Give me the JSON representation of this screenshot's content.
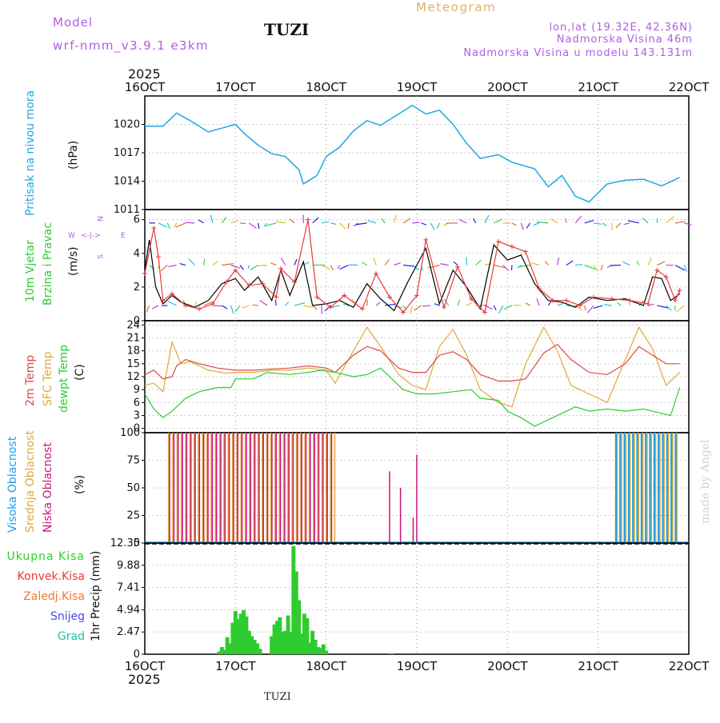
{
  "header": {
    "model_label": "Model",
    "model_name": "wrf-nmm_v3.9.1 e3km",
    "station": "TUZI",
    "meteogram": "Meteogram",
    "lonlat": "lon,lat (19.32E, 42.36N)",
    "elevation": "Nadmorska Visina 46m",
    "model_elevation": "Nadmorska Visina u modelu 143.131m",
    "footer_station": "TUZI",
    "credit": "made by Angel"
  },
  "time_axis": {
    "year": "2025",
    "ticks": [
      "16OCT",
      "17OCT",
      "18OCT",
      "19OCT",
      "20OCT",
      "21OCT",
      "22OCT"
    ]
  },
  "colors": {
    "pressure": "#1ba8e0",
    "wind_black": "#000000",
    "wind_gust": "#e83a3a",
    "t2m": "#e04848",
    "sfc": "#e0a838",
    "dewpt": "#2ecc2e",
    "high_cloud": "#1ba0e8",
    "mid_cloud": "#e0a838",
    "low_cloud": "#c8147a",
    "precip_total": "#2ecc2e",
    "precip_conv": "#e83a3a"
  },
  "chart_data": [
    {
      "type": "line",
      "title": "Pritisak na nivou mora",
      "ylabel": "(hPa)",
      "ylim": [
        1011,
        1023
      ],
      "yticks": [
        "1020",
        "1017",
        "1014",
        "1011"
      ],
      "x_days": [
        0,
        0.2,
        0.35,
        0.5,
        0.7,
        0.85,
        1.0,
        1.1,
        1.25,
        1.4,
        1.55,
        1.7,
        1.75,
        1.9,
        2.0,
        2.15,
        2.3,
        2.45,
        2.6,
        2.75,
        2.95,
        3.1,
        3.25,
        3.4,
        3.55,
        3.7,
        3.9,
        4.05,
        4.3,
        4.45,
        4.6,
        4.75,
        4.9,
        5.1,
        5.3,
        5.5,
        5.7,
        5.9
      ],
      "values": [
        1019.8,
        1019.8,
        1021.2,
        1020.4,
        1019.2,
        1019.6,
        1020.0,
        1019.0,
        1017.8,
        1016.9,
        1016.6,
        1015.2,
        1013.7,
        1014.6,
        1016.6,
        1017.6,
        1019.3,
        1020.4,
        1019.9,
        1020.8,
        1022.0,
        1021.1,
        1021.5,
        1020.0,
        1018.0,
        1016.4,
        1016.8,
        1016.0,
        1015.3,
        1013.4,
        1014.6,
        1012.4,
        1011.8,
        1013.7,
        1014.1,
        1014.2,
        1013.5,
        1014.4
      ],
      "series_name": "Pritisak na nivou mora"
    },
    {
      "type": "line",
      "title": "10m Vjetar Brzina i Pravac",
      "ylabel": "(m/s)",
      "ylim": [
        0,
        6.6
      ],
      "yticks": [
        "6",
        "4",
        "2",
        "0"
      ],
      "direction_legend": {
        "n": "N",
        "s": "S",
        "w": "W",
        "e": "E"
      },
      "series": [
        {
          "name": "wind speed",
          "x_days": [
            0,
            0.05,
            0.12,
            0.2,
            0.3,
            0.4,
            0.55,
            0.7,
            0.85,
            1.0,
            1.1,
            1.25,
            1.4,
            1.5,
            1.6,
            1.75,
            1.85,
            2.0,
            2.15,
            2.3,
            2.45,
            2.6,
            2.75,
            2.9,
            3.1,
            3.25,
            3.4,
            3.55,
            3.7,
            3.85,
            4.0,
            4.15,
            4.3,
            4.45,
            4.6,
            4.75,
            4.9,
            5.1,
            5.3,
            5.5,
            5.6,
            5.7,
            5.8,
            5.9
          ],
          "values": [
            3.0,
            4.8,
            2.0,
            1.0,
            1.5,
            1.1,
            0.8,
            1.2,
            2.2,
            2.5,
            1.8,
            2.6,
            1.2,
            3.0,
            1.5,
            3.5,
            0.9,
            1.0,
            1.2,
            0.8,
            2.2,
            1.3,
            0.6,
            2.3,
            4.3,
            1.0,
            3.0,
            2.0,
            0.7,
            4.5,
            3.6,
            3.9,
            2.2,
            1.2,
            1.1,
            0.8,
            1.4,
            1.2,
            1.3,
            0.9,
            2.6,
            2.5,
            1.2,
            1.6
          ]
        },
        {
          "name": "gust",
          "x_days": [
            0,
            0.1,
            0.15,
            0.2,
            0.3,
            0.45,
            0.6,
            0.75,
            0.9,
            1.0,
            1.15,
            1.3,
            1.45,
            1.5,
            1.65,
            1.8,
            1.9,
            2.05,
            2.2,
            2.4,
            2.55,
            2.7,
            2.85,
            3.0,
            3.1,
            3.3,
            3.45,
            3.6,
            3.75,
            3.9,
            4.05,
            4.2,
            4.35,
            4.5,
            4.65,
            4.8,
            4.95,
            5.15,
            5.35,
            5.55,
            5.65,
            5.75,
            5.85,
            5.9
          ],
          "values": [
            2.8,
            5.5,
            3.8,
            1.2,
            1.6,
            0.9,
            0.7,
            1.0,
            2.3,
            3.0,
            2.1,
            2.2,
            1.4,
            3.1,
            2.3,
            6.0,
            1.4,
            0.8,
            1.5,
            0.7,
            2.8,
            1.4,
            0.5,
            1.5,
            4.8,
            0.8,
            3.2,
            1.3,
            0.5,
            4.7,
            4.4,
            4.1,
            1.9,
            1.2,
            1.2,
            0.9,
            1.4,
            1.3,
            1.2,
            1.0,
            3.0,
            2.6,
            1.2,
            1.8
          ]
        }
      ],
      "barb_levels": [
        5.8,
        3.3,
        0.9
      ]
    },
    {
      "type": "line",
      "title": "2m Temp",
      "titles": [
        "2m Temp",
        "SFC Temp",
        "dewpt Temp"
      ],
      "ylabel": "(C)",
      "ylim": [
        -1,
        25
      ],
      "yticks": [
        "24",
        "21",
        "18",
        "15",
        "12",
        "9",
        "6",
        "3",
        "0"
      ],
      "series": [
        {
          "name": "2m Temp",
          "x_days": [
            0,
            0.1,
            0.2,
            0.3,
            0.35,
            0.45,
            0.6,
            0.8,
            1.0,
            1.2,
            1.4,
            1.6,
            1.8,
            2.0,
            2.1,
            2.3,
            2.45,
            2.6,
            2.8,
            2.95,
            3.1,
            3.25,
            3.4,
            3.55,
            3.7,
            3.9,
            4.05,
            4.2,
            4.4,
            4.55,
            4.7,
            4.9,
            5.1,
            5.3,
            5.45,
            5.6,
            5.75,
            5.9
          ],
          "values": [
            12.5,
            13.5,
            11.5,
            12.0,
            14.5,
            16.0,
            15.0,
            14.0,
            13.5,
            13.5,
            13.8,
            14.0,
            14.5,
            14.0,
            13.0,
            17.0,
            19.0,
            18.0,
            14.0,
            13.0,
            13.0,
            17.0,
            17.8,
            16.0,
            12.5,
            11.0,
            11.0,
            11.5,
            17.5,
            19.5,
            16.0,
            13.0,
            12.5,
            15.0,
            19.0,
            17.0,
            15.0,
            15.0
          ]
        },
        {
          "name": "SFC Temp",
          "x_days": [
            0,
            0.1,
            0.2,
            0.3,
            0.4,
            0.5,
            0.7,
            0.9,
            1.0,
            1.2,
            1.4,
            1.6,
            1.8,
            2.0,
            2.1,
            2.3,
            2.45,
            2.6,
            2.8,
            2.95,
            3.1,
            3.25,
            3.4,
            3.55,
            3.7,
            3.9,
            4.05,
            4.2,
            4.4,
            4.55,
            4.7,
            4.9,
            5.1,
            5.3,
            5.45,
            5.6,
            5.75,
            5.9
          ],
          "values": [
            10.0,
            10.5,
            8.5,
            20.0,
            15.0,
            15.5,
            13.5,
            12.8,
            13.0,
            13.0,
            13.5,
            13.5,
            14.0,
            13.5,
            10.5,
            18.0,
            23.5,
            19.0,
            12.5,
            10.0,
            9.0,
            19.0,
            23.0,
            17.0,
            9.0,
            6.0,
            5.0,
            15.0,
            23.5,
            18.0,
            10.0,
            8.0,
            6.0,
            16.0,
            23.5,
            18.5,
            10.0,
            13.0
          ]
        },
        {
          "name": "dewpt Temp",
          "x_days": [
            0,
            0.1,
            0.2,
            0.3,
            0.45,
            0.6,
            0.8,
            0.95,
            1.0,
            1.2,
            1.35,
            1.6,
            1.8,
            1.95,
            2.1,
            2.3,
            2.45,
            2.6,
            2.75,
            2.85,
            3.0,
            3.2,
            3.4,
            3.6,
            3.7,
            3.9,
            4.0,
            4.15,
            4.3,
            4.45,
            4.6,
            4.75,
            4.9,
            5.1,
            5.3,
            5.5,
            5.7,
            5.8,
            5.9
          ],
          "values": [
            8.0,
            4.5,
            2.5,
            4.0,
            7.0,
            8.5,
            9.5,
            9.5,
            11.5,
            11.5,
            13.0,
            12.5,
            13.0,
            13.5,
            13.0,
            12.0,
            12.5,
            14.0,
            11.0,
            9.0,
            8.0,
            8.0,
            8.5,
            9.0,
            7.0,
            6.5,
            4.0,
            2.5,
            0.5,
            2.0,
            3.5,
            5.0,
            4.0,
            4.5,
            4.0,
            4.5,
            3.5,
            3.0,
            9.5
          ]
        }
      ]
    },
    {
      "type": "bar",
      "titles": [
        "Visoka Oblacnost",
        "Srednja Oblacnost",
        "Niska Oblacnost"
      ],
      "ylabel": "(%)",
      "ylim": [
        0,
        100
      ],
      "yticks": [
        "100",
        "75",
        "50",
        "25",
        "0"
      ],
      "series": [
        {
          "name": "Visoka Oblacnost",
          "periods": [
            [
              5.2,
              5.9
            ]
          ],
          "value": 100
        },
        {
          "name": "Srednja Oblacnost",
          "periods": [
            [
              0.25,
              2.1
            ],
            [
              5.2,
              5.9
            ]
          ],
          "value": 100
        },
        {
          "name": "Niska Oblacnost",
          "periods": [
            [
              0.25,
              2.1
            ]
          ],
          "value": 100
        }
      ],
      "isolated_bars": [
        {
          "x_day": 2.7,
          "value": 65
        },
        {
          "x_day": 2.82,
          "value": 50
        },
        {
          "x_day": 2.96,
          "value": 23
        },
        {
          "x_day": 3.0,
          "value": 80
        }
      ]
    },
    {
      "type": "bar",
      "titles": [
        "Ukupna Kisa",
        "Konvek.Kisa",
        "Zaledj.Kisa",
        "Snijeg",
        "Grad"
      ],
      "ylabel": "1hr Precip (mm)",
      "ylim": [
        0,
        12.35
      ],
      "yticks": [
        "12.35",
        "9.88",
        "7.41",
        "4.94",
        "2.47",
        "0"
      ],
      "x_days": [
        0.82,
        0.85,
        0.88,
        0.91,
        0.94,
        0.97,
        1.0,
        1.03,
        1.06,
        1.09,
        1.12,
        1.15,
        1.18,
        1.21,
        1.24,
        1.27,
        1.4,
        1.43,
        1.46,
        1.49,
        1.52,
        1.55,
        1.58,
        1.61,
        1.64,
        1.67,
        1.7,
        1.73,
        1.76,
        1.79,
        1.82,
        1.85,
        1.88,
        1.91,
        1.94,
        1.97,
        2.0
      ],
      "values": [
        0.3,
        0.8,
        0.5,
        1.9,
        1.2,
        3.5,
        4.8,
        3.9,
        4.5,
        4.9,
        4.2,
        2.6,
        2.0,
        1.6,
        1.2,
        0.6,
        2.0,
        3.3,
        3.7,
        4.1,
        2.5,
        2.6,
        4.3,
        2.5,
        12.0,
        9.2,
        6.0,
        2.3,
        4.5,
        4.0,
        1.3,
        2.6,
        1.6,
        0.8,
        0.7,
        1.1,
        0.4
      ],
      "conv_x_days": [
        2.7,
        2.73
      ],
      "conv_values": [
        0.1,
        0.05
      ]
    }
  ]
}
